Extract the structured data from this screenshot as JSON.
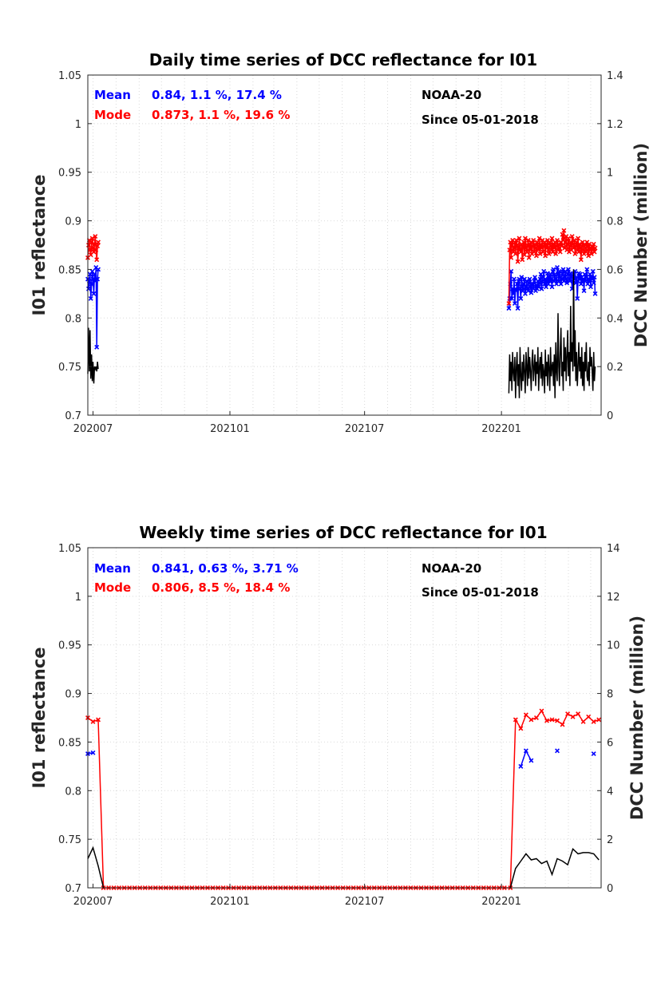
{
  "colors": {
    "mean": "#0000ff",
    "mode": "#ff0000",
    "count": "#000000",
    "axis": "#262626"
  },
  "chart_data": [
    {
      "type": "line",
      "title": "Daily time series of DCC reflectance for I01",
      "ylabel": "I01 reflectance",
      "y2label": "DCC Number (million)",
      "ylim": [
        0.7,
        1.05
      ],
      "y2lim": [
        0,
        1.4
      ],
      "y_ticks": [
        "0.7",
        "0.75",
        "0.8",
        "0.85",
        "0.9",
        "0.95",
        "1",
        "1.05"
      ],
      "y2_ticks": [
        "0",
        "0.2",
        "0.4",
        "0.6",
        "0.8",
        "1",
        "1.2",
        "1.4"
      ],
      "xlim": [
        "2020-06-24",
        "2022-05-15"
      ],
      "x_ticks": [
        {
          "date": "2020-07-01",
          "label": "202007"
        },
        {
          "date": "2021-01-01",
          "label": "202101"
        },
        {
          "date": "2021-07-01",
          "label": "202107"
        },
        {
          "date": "2022-01-01",
          "label": "202201"
        }
      ],
      "grid": true,
      "annotations": {
        "mean_label": "Mean",
        "mean_stats": "0.84, 1.1 %, 17.4 %",
        "mode_label": "Mode",
        "mode_stats": "0.873, 1.1 %, 19.6 %",
        "satellite": "NOAA-20",
        "since": "Since 05-01-2018"
      },
      "series": [
        {
          "name": "Mean",
          "axis": "left",
          "marker": true,
          "segments": [
            {
              "start": "2020-06-24",
              "step_days": 1,
              "values": [
                0.84,
                0.83,
                0.838,
                0.845,
                0.82,
                0.835,
                0.848,
                0.84,
                0.825,
                0.845,
                0.838,
                0.852,
                0.77,
                0.84,
                0.85
              ]
            },
            {
              "start": "2022-01-11",
              "step_days": 1,
              "values": [
                0.81,
                0.82,
                0.835,
                0.848,
                0.82,
                0.83,
                0.825,
                0.84,
                0.815,
                0.83,
                0.828,
                0.835,
                0.81,
                0.838,
                0.84,
                0.83,
                0.82,
                0.842,
                0.832,
                0.828,
                0.835,
                0.84,
                0.825,
                0.832,
                0.838,
                0.83,
                0.828,
                0.836,
                0.84,
                0.832,
                0.826,
                0.834,
                0.835,
                0.83,
                0.838,
                0.842,
                0.828,
                0.834,
                0.83,
                0.838,
                0.832,
                0.836,
                0.84,
                0.845,
                0.83,
                0.838,
                0.842,
                0.848,
                0.835,
                0.84,
                0.832,
                0.838,
                0.846,
                0.835,
                0.842,
                0.838,
                0.845,
                0.84,
                0.832,
                0.848,
                0.85,
                0.838,
                0.845,
                0.84,
                0.835,
                0.852,
                0.845,
                0.838,
                0.848,
                0.842,
                0.835,
                0.84,
                0.846,
                0.85,
                0.838,
                0.842,
                0.848,
                0.84,
                0.836,
                0.845,
                0.85,
                0.84,
                0.838,
                0.846,
                0.842,
                0.83,
                0.838,
                0.845,
                0.84,
                0.848,
                0.836,
                0.842,
                0.82,
                0.838,
                0.846,
                0.84,
                0.845,
                0.835,
                0.842,
                0.838,
                0.84,
                0.828,
                0.845,
                0.838,
                0.842,
                0.85,
                0.835,
                0.84,
                0.838,
                0.845,
                0.832,
                0.842,
                0.84,
                0.848,
                0.836,
                0.842,
                0.825
              ]
            }
          ]
        },
        {
          "name": "Mode",
          "axis": "left",
          "marker": true,
          "segments": [
            {
              "start": "2020-06-24",
              "step_days": 1,
              "values": [
                0.862,
                0.875,
                0.88,
                0.87,
                0.865,
                0.878,
                0.882,
                0.872,
                0.868,
                0.876,
                0.884,
                0.87,
                0.86,
                0.874,
                0.878
              ]
            },
            {
              "start": "2022-01-11",
              "step_days": 1,
              "values": [
                0.815,
                0.87,
                0.878,
                0.862,
                0.875,
                0.88,
                0.868,
                0.872,
                0.878,
                0.866,
                0.88,
                0.875,
                0.858,
                0.872,
                0.882,
                0.87,
                0.868,
                0.876,
                0.86,
                0.874,
                0.878,
                0.865,
                0.882,
                0.872,
                0.868,
                0.875,
                0.88,
                0.862,
                0.876,
                0.87,
                0.878,
                0.866,
                0.874,
                0.88,
                0.868,
                0.876,
                0.872,
                0.864,
                0.878,
                0.874,
                0.87,
                0.882,
                0.866,
                0.876,
                0.872,
                0.88,
                0.868,
                0.874,
                0.878,
                0.864,
                0.876,
                0.872,
                0.88,
                0.87,
                0.866,
                0.878,
                0.874,
                0.87,
                0.882,
                0.868,
                0.876,
                0.872,
                0.878,
                0.866,
                0.874,
                0.88,
                0.87,
                0.876,
                0.872,
                0.868,
                0.878,
                0.874,
                0.886,
                0.88,
                0.89,
                0.872,
                0.878,
                0.884,
                0.87,
                0.876,
                0.882,
                0.868,
                0.874,
                0.878,
                0.87,
                0.884,
                0.876,
                0.872,
                0.88,
                0.866,
                0.874,
                0.878,
                0.87,
                0.882,
                0.868,
                0.876,
                0.872,
                0.86,
                0.874,
                0.878,
                0.87,
                0.866,
                0.876,
                0.872,
                0.868,
                0.878,
                0.874,
                0.864,
                0.876,
                0.87,
                0.872,
                0.866,
                0.874,
                0.87,
                0.876,
                0.868,
                0.872
              ]
            }
          ]
        },
        {
          "name": "DCC Number",
          "axis": "right",
          "marker": false,
          "segments": [
            {
              "start": "2020-06-24",
              "step_days": 1,
              "values": [
                0.17,
                0.36,
                0.18,
                0.35,
                0.15,
                0.25,
                0.14,
                0.22,
                0.13,
                0.2,
                0.19,
                0.2,
                0.18,
                0.22,
                0.19
              ]
            },
            {
              "start": "2022-01-11",
              "step_days": 1,
              "values": [
                0.09,
                0.25,
                0.14,
                0.22,
                0.1,
                0.26,
                0.18,
                0.14,
                0.24,
                0.07,
                0.2,
                0.26,
                0.12,
                0.21,
                0.07,
                0.28,
                0.16,
                0.1,
                0.22,
                0.14,
                0.25,
                0.18,
                0.09,
                0.26,
                0.2,
                0.12,
                0.28,
                0.15,
                0.24,
                0.18,
                0.1,
                0.22,
                0.27,
                0.14,
                0.19,
                0.25,
                0.12,
                0.22,
                0.17,
                0.28,
                0.1,
                0.2,
                0.24,
                0.15,
                0.26,
                0.12,
                0.21,
                0.18,
                0.09,
                0.27,
                0.16,
                0.22,
                0.12,
                0.25,
                0.19,
                0.1,
                0.28,
                0.16,
                0.2,
                0.22,
                0.12,
                0.25,
                0.07,
                0.3,
                0.18,
                0.14,
                0.42,
                0.2,
                0.12,
                0.26,
                0.36,
                0.16,
                0.22,
                0.1,
                0.32,
                0.18,
                0.28,
                0.14,
                0.24,
                0.35,
                0.16,
                0.26,
                0.12,
                0.45,
                0.22,
                0.3,
                0.18,
                0.6,
                0.2,
                0.35,
                0.14,
                0.26,
                0.12,
                0.2,
                0.3,
                0.18,
                0.24,
                0.15,
                0.28,
                0.12,
                0.22,
                0.1,
                0.26,
                0.18,
                0.3,
                0.16,
                0.14,
                0.22,
                0.12,
                0.28,
                0.2,
                0.24,
                0.18,
                0.1,
                0.26,
                0.14,
                0.2
              ]
            }
          ]
        }
      ]
    },
    {
      "type": "line",
      "title": "Weekly time series of DCC reflectance for I01",
      "ylabel": "I01 reflectance",
      "y2label": "DCC Number (million)",
      "ylim": [
        0.7,
        1.05
      ],
      "y2lim": [
        0,
        14
      ],
      "y_ticks": [
        "0.7",
        "0.75",
        "0.8",
        "0.85",
        "0.9",
        "0.95",
        "1",
        "1.05"
      ],
      "y2_ticks": [
        "0",
        "2",
        "4",
        "6",
        "8",
        "10",
        "12",
        "14"
      ],
      "xlim": [
        "2020-06-24",
        "2022-05-15"
      ],
      "x_ticks": [
        {
          "date": "2020-07-01",
          "label": "202007"
        },
        {
          "date": "2021-01-01",
          "label": "202101"
        },
        {
          "date": "2021-07-01",
          "label": "202107"
        },
        {
          "date": "2022-01-01",
          "label": "202201"
        }
      ],
      "grid": true,
      "annotations": {
        "mean_label": "Mean",
        "mean_stats": "0.841, 0.63 %, 3.71 %",
        "mode_label": "Mode",
        "mode_stats": "0.806, 8.5 %, 18.4 %",
        "satellite": "NOAA-20",
        "since": "Since 05-01-2018"
      },
      "series": [
        {
          "name": "Mean",
          "axis": "left",
          "marker": true,
          "points": [
            [
              "2020-06-24",
              0.838
            ],
            [
              "2020-07-01",
              0.839
            ],
            [
              "2022-01-27",
              0.825
            ],
            [
              "2022-02-03",
              0.841
            ],
            [
              "2022-02-10",
              0.831
            ],
            [
              "2022-03-17",
              0.841
            ],
            [
              "2022-05-05",
              0.838
            ]
          ]
        },
        {
          "name": "Mode",
          "axis": "left",
          "marker": true,
          "zero_run": {
            "start": "2020-07-22",
            "end": "2022-01-06",
            "value": 0.7,
            "step_days": 7
          },
          "points": [
            [
              "2020-06-24",
              0.875
            ],
            [
              "2020-07-01",
              0.871
            ],
            [
              "2020-07-08",
              0.873
            ],
            [
              "2020-07-15",
              0.7
            ],
            [
              "2022-01-13",
              0.7
            ],
            [
              "2022-01-20",
              0.873
            ],
            [
              "2022-01-27",
              0.864
            ],
            [
              "2022-02-03",
              0.878
            ],
            [
              "2022-02-10",
              0.873
            ],
            [
              "2022-02-17",
              0.875
            ],
            [
              "2022-02-24",
              0.882
            ],
            [
              "2022-03-03",
              0.872
            ],
            [
              "2022-03-10",
              0.873
            ],
            [
              "2022-03-17",
              0.872
            ],
            [
              "2022-03-24",
              0.868
            ],
            [
              "2022-03-31",
              0.879
            ],
            [
              "2022-04-07",
              0.876
            ],
            [
              "2022-04-14",
              0.879
            ],
            [
              "2022-04-21",
              0.871
            ],
            [
              "2022-04-28",
              0.876
            ],
            [
              "2022-05-05",
              0.871
            ],
            [
              "2022-05-12",
              0.873
            ]
          ]
        },
        {
          "name": "DCC Number",
          "axis": "right",
          "marker": false,
          "points": [
            [
              "2020-06-24",
              1.2
            ],
            [
              "2020-07-01",
              1.65
            ],
            [
              "2020-07-08",
              0.9
            ],
            [
              "2020-07-15",
              0
            ],
            [
              "2022-01-13",
              0
            ],
            [
              "2022-01-20",
              0.8
            ],
            [
              "2022-01-27",
              1.1
            ],
            [
              "2022-02-03",
              1.4
            ],
            [
              "2022-02-10",
              1.15
            ],
            [
              "2022-02-17",
              1.2
            ],
            [
              "2022-02-24",
              1.0
            ],
            [
              "2022-03-03",
              1.1
            ],
            [
              "2022-03-10",
              0.55
            ],
            [
              "2022-03-17",
              1.2
            ],
            [
              "2022-03-24",
              1.1
            ],
            [
              "2022-03-31",
              0.95
            ],
            [
              "2022-04-07",
              1.6
            ],
            [
              "2022-04-14",
              1.4
            ],
            [
              "2022-04-21",
              1.45
            ],
            [
              "2022-04-28",
              1.45
            ],
            [
              "2022-05-05",
              1.4
            ],
            [
              "2022-05-12",
              1.15
            ]
          ]
        }
      ]
    }
  ]
}
